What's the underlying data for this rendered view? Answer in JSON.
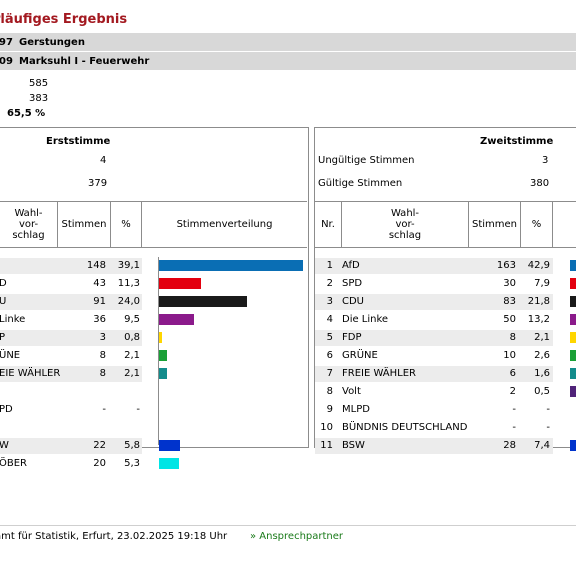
{
  "header": {
    "title": "rläufiges Ergebnis",
    "line1_code": "97",
    "line1_name": "Gerstungen",
    "line2_code": "09",
    "line2_name": "Marksuhl I - Feuerwehr"
  },
  "stats": {
    "v1": "585",
    "v2": "383",
    "turnout": "65,5 %"
  },
  "erststimme": {
    "heading": "Erststimme",
    "invalid_value": "4",
    "valid_value": "379",
    "col_wahlvorschlag": "Wahl-\nvor-\nschlag",
    "col_stimmen": "Stimmen",
    "col_pct": "%",
    "col_dist": "Stimmenverteilung",
    "rows": [
      {
        "name": "",
        "votes": "148",
        "pct": "39,1"
      },
      {
        "name": "D",
        "votes": "43",
        "pct": "11,3"
      },
      {
        "name": "U",
        "votes": "91",
        "pct": "24,0"
      },
      {
        "name": "Linke",
        "votes": "36",
        "pct": "9,5"
      },
      {
        "name": "P",
        "votes": "3",
        "pct": "0,8"
      },
      {
        "name": "ÜNE",
        "votes": "8",
        "pct": "2,1"
      },
      {
        "name": "EIE WÄHLER",
        "votes": "8",
        "pct": "2,1"
      },
      {
        "name": "",
        "votes": "",
        "pct": ""
      },
      {
        "name": "PD",
        "votes": "-",
        "pct": "-"
      },
      {
        "name": "",
        "votes": "",
        "pct": ""
      },
      {
        "name": "W",
        "votes": "22",
        "pct": "5,8"
      },
      {
        "name": "ÖBER",
        "votes": "20",
        "pct": "5,3"
      }
    ]
  },
  "zweitstimme": {
    "heading": "Zweitstimme",
    "invalid_label": "Ungültige Stimmen",
    "invalid_value": "3",
    "valid_label": "Gültige Stimmen",
    "valid_value": "380",
    "col_nr": "Nr.",
    "col_wahlvorschlag": "Wahl-\nvor-\nschlag",
    "col_stimmen": "Stimmen",
    "col_pct": "%",
    "rows": [
      {
        "nr": "1",
        "name": "AfD",
        "votes": "163",
        "pct": "42,9"
      },
      {
        "nr": "2",
        "name": "SPD",
        "votes": "30",
        "pct": "7,9"
      },
      {
        "nr": "3",
        "name": "CDU",
        "votes": "83",
        "pct": "21,8"
      },
      {
        "nr": "4",
        "name": "Die Linke",
        "votes": "50",
        "pct": "13,2"
      },
      {
        "nr": "5",
        "name": "FDP",
        "votes": "8",
        "pct": "2,1"
      },
      {
        "nr": "6",
        "name": "GRÜNE",
        "votes": "10",
        "pct": "2,6"
      },
      {
        "nr": "7",
        "name": "FREIE WÄHLER",
        "votes": "6",
        "pct": "1,6"
      },
      {
        "nr": "8",
        "name": "Volt",
        "votes": "2",
        "pct": "0,5"
      },
      {
        "nr": "9",
        "name": "MLPD",
        "votes": "-",
        "pct": "-"
      },
      {
        "nr": "10",
        "name": "BÜNDNIS DEUTSCHLAND",
        "votes": "-",
        "pct": "-"
      },
      {
        "nr": "11",
        "name": "BSW",
        "votes": "28",
        "pct": "7,4"
      }
    ]
  },
  "party_colors": {
    "afd": "#0a6eb4",
    "spd": "#e3000f",
    "cdu": "#1a1a1a",
    "linke": "#8b1a8b",
    "fdp": "#ffd600",
    "gruene": "#1aa037",
    "fw": "#138c8c",
    "volt": "#502379",
    "bsw": "#0033cc",
    "other": "#00e5e5"
  },
  "footer": {
    "text": "amt für Statistik, Erfurt, 23.02.2025 19:18 Uhr",
    "link": "» Ansprechpartner"
  }
}
